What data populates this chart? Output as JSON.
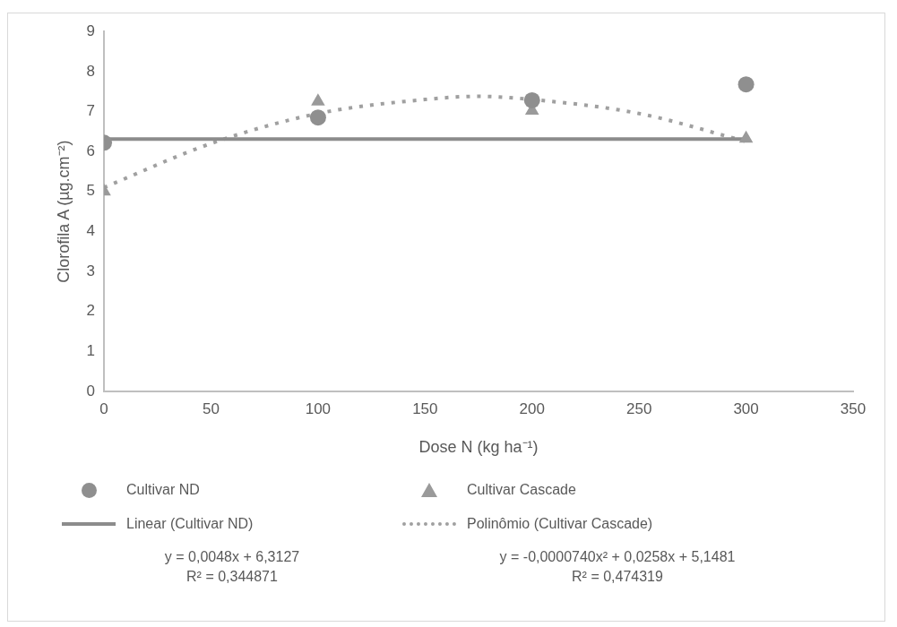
{
  "chart_data": {
    "type": "scatter",
    "xlabel": "Dose N (kg ha⁻¹)",
    "ylabel": "Clorofila A (µg.cm⁻²)",
    "xlim": [
      0,
      350
    ],
    "xticks": [
      0,
      50,
      100,
      150,
      200,
      250,
      300,
      350
    ],
    "ylim": [
      0,
      9
    ],
    "yticks": [
      0,
      1,
      2,
      3,
      4,
      5,
      6,
      7,
      8,
      9
    ],
    "grid": false,
    "legend": "bottom",
    "series": [
      {
        "name": "Cultivar ND",
        "color": "#8f8f8f",
        "marker": "circle",
        "x": [
          0,
          100,
          200,
          300
        ],
        "values": [
          6.22,
          6.85,
          7.28,
          7.68
        ]
      },
      {
        "name": "Cultivar Cascade",
        "color": "#9a9a9a",
        "marker": "triangle",
        "x": [
          0,
          100,
          200,
          300
        ],
        "values": [
          5.0,
          7.25,
          7.02,
          6.32
        ]
      },
      {
        "name": "Linear (Cultivar ND)",
        "type": "line",
        "color": "#8c8c8c",
        "marker": "none",
        "line_style": "solid",
        "x": [
          0,
          300
        ],
        "values": [
          6.31,
          6.31
        ]
      },
      {
        "name": "Polinômio (Cultivar Cascade)",
        "type": "line",
        "color": "#a0a0a0",
        "marker": "none",
        "line_style": "dotted",
        "x": [
          0,
          50,
          100,
          150,
          175,
          200,
          250,
          300
        ],
        "values": [
          5.1,
          6.2,
          6.95,
          7.3,
          7.38,
          7.3,
          6.95,
          6.25
        ]
      }
    ],
    "annotations": [
      "y = 0,0048x + 6,3127\nR² = 0,344871",
      "y = -0,0000740x² + 0,0258x + 5,1481\nR² = 0,474319"
    ]
  }
}
